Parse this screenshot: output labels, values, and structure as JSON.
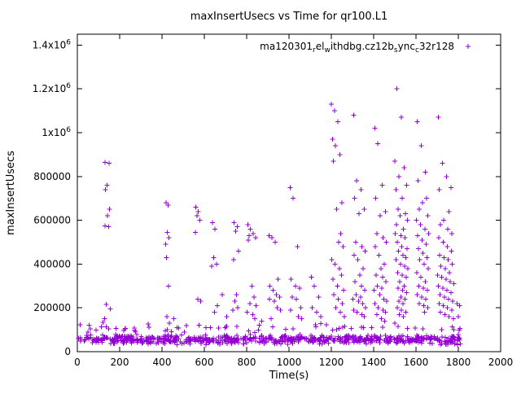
{
  "page": {
    "background": "#ffffff"
  },
  "chart_data": {
    "type": "scatter",
    "title": "maxInsertUsecs vs Time for qr100.L1",
    "xlabel": "Time(s)",
    "ylabel": "maxInsertUsecs",
    "xlim": [
      0,
      2000
    ],
    "ylim": [
      0,
      1450000
    ],
    "grid": false,
    "marker": "plus",
    "marker_color": "#9400d3",
    "xticks": [
      0,
      200,
      400,
      600,
      800,
      1000,
      1200,
      1400,
      1600,
      1800,
      2000
    ],
    "yticks": [
      {
        "v": 0,
        "label": "0"
      },
      {
        "v": 200000,
        "label": "200000"
      },
      {
        "v": 400000,
        "label": "400000"
      },
      {
        "v": 600000,
        "label": "600000"
      },
      {
        "v": 800000,
        "label": "800000"
      },
      {
        "v": 1000000,
        "label": "1x10^6"
      },
      {
        "v": 1200000,
        "label": "1.2x10^6"
      },
      {
        "v": 1400000,
        "label": "1.4x10^6"
      }
    ],
    "legend": {
      "label": "ma120301_rel_withdbg.cz12b_sync_c32r128",
      "position": "top-right-inside",
      "segments": [
        {
          "t": "ma120301",
          "sub": false
        },
        {
          "t": "r",
          "sub": true
        },
        {
          "t": "el",
          "sub": false
        },
        {
          "t": "w",
          "sub": true
        },
        {
          "t": "ithdbg.cz12b",
          "sub": false
        },
        {
          "t": "s",
          "sub": true
        },
        {
          "t": "ync",
          "sub": false
        },
        {
          "t": "c",
          "sub": true
        },
        {
          "t": "32r128",
          "sub": false
        }
      ]
    },
    "baseline_layers": [
      {
        "count": 680,
        "x": [
          2,
          1812
        ],
        "y": [
          30000,
          80000
        ],
        "seed": 42
      },
      {
        "count": 60,
        "x": [
          5,
          1810
        ],
        "y": [
          80000,
          135000
        ],
        "seed": 1234
      }
    ],
    "points": [
      [
        62,
        105000
      ],
      [
        88,
        98000
      ],
      [
        128,
        150000
      ],
      [
        130,
        865000
      ],
      [
        131,
        575000
      ],
      [
        133,
        740000
      ],
      [
        137,
        215000
      ],
      [
        140,
        760000
      ],
      [
        143,
        620000
      ],
      [
        148,
        570000
      ],
      [
        150,
        860000
      ],
      [
        152,
        650000
      ],
      [
        155,
        195000
      ],
      [
        415,
        95000
      ],
      [
        418,
        490000
      ],
      [
        420,
        680000
      ],
      [
        422,
        430000
      ],
      [
        424,
        160000
      ],
      [
        425,
        545000
      ],
      [
        428,
        670000
      ],
      [
        430,
        300000
      ],
      [
        432,
        520000
      ],
      [
        435,
        130000
      ],
      [
        455,
        150000
      ],
      [
        505,
        90000
      ],
      [
        558,
        545000
      ],
      [
        560,
        660000
      ],
      [
        565,
        620000
      ],
      [
        570,
        240000
      ],
      [
        572,
        640000
      ],
      [
        575,
        120000
      ],
      [
        578,
        600000
      ],
      [
        582,
        230000
      ],
      [
        635,
        390000
      ],
      [
        638,
        590000
      ],
      [
        644,
        430000
      ],
      [
        648,
        180000
      ],
      [
        650,
        560000
      ],
      [
        658,
        400000
      ],
      [
        662,
        210000
      ],
      [
        685,
        260000
      ],
      [
        705,
        160000
      ],
      [
        735,
        190000
      ],
      [
        738,
        420000
      ],
      [
        740,
        590000
      ],
      [
        745,
        230000
      ],
      [
        748,
        550000
      ],
      [
        752,
        260000
      ],
      [
        755,
        570000
      ],
      [
        758,
        200000
      ],
      [
        762,
        460000
      ],
      [
        802,
        180000
      ],
      [
        805,
        580000
      ],
      [
        808,
        510000
      ],
      [
        812,
        530000
      ],
      [
        815,
        220000
      ],
      [
        818,
        560000
      ],
      [
        825,
        300000
      ],
      [
        828,
        170000
      ],
      [
        830,
        540000
      ],
      [
        835,
        250000
      ],
      [
        838,
        150000
      ],
      [
        842,
        520000
      ],
      [
        845,
        210000
      ],
      [
        872,
        140000
      ],
      [
        905,
        530000
      ],
      [
        908,
        240000
      ],
      [
        910,
        300000
      ],
      [
        915,
        150000
      ],
      [
        920,
        520000
      ],
      [
        925,
        280000
      ],
      [
        930,
        230000
      ],
      [
        935,
        500000
      ],
      [
        940,
        260000
      ],
      [
        945,
        200000
      ],
      [
        948,
        330000
      ],
      [
        955,
        250000
      ],
      [
        960,
        190000
      ],
      [
        1005,
        750000
      ],
      [
        1008,
        190000
      ],
      [
        1010,
        330000
      ],
      [
        1015,
        250000
      ],
      [
        1020,
        700000
      ],
      [
        1030,
        300000
      ],
      [
        1035,
        240000
      ],
      [
        1040,
        480000
      ],
      [
        1045,
        160000
      ],
      [
        1050,
        290000
      ],
      [
        1055,
        200000
      ],
      [
        1060,
        150000
      ],
      [
        1105,
        340000
      ],
      [
        1110,
        200000
      ],
      [
        1120,
        300000
      ],
      [
        1130,
        180000
      ],
      [
        1140,
        250000
      ],
      [
        1150,
        160000
      ],
      [
        1200,
        1130000
      ],
      [
        1215,
        1100000
      ],
      [
        1230,
        1050000
      ],
      [
        1205,
        970000
      ],
      [
        1220,
        940000
      ],
      [
        1240,
        900000
      ],
      [
        1210,
        870000
      ],
      [
        1250,
        680000
      ],
      [
        1225,
        650000
      ],
      [
        1245,
        540000
      ],
      [
        1235,
        500000
      ],
      [
        1255,
        480000
      ],
      [
        1202,
        420000
      ],
      [
        1218,
        400000
      ],
      [
        1238,
        380000
      ],
      [
        1248,
        350000
      ],
      [
        1208,
        330000
      ],
      [
        1228,
        300000
      ],
      [
        1258,
        280000
      ],
      [
        1212,
        260000
      ],
      [
        1232,
        240000
      ],
      [
        1252,
        220000
      ],
      [
        1222,
        200000
      ],
      [
        1242,
        180000
      ],
      [
        1262,
        160000
      ],
      [
        1305,
        1080000
      ],
      [
        1320,
        780000
      ],
      [
        1340,
        740000
      ],
      [
        1310,
        700000
      ],
      [
        1355,
        650000
      ],
      [
        1330,
        630000
      ],
      [
        1315,
        500000
      ],
      [
        1345,
        480000
      ],
      [
        1360,
        460000
      ],
      [
        1308,
        440000
      ],
      [
        1325,
        420000
      ],
      [
        1350,
        380000
      ],
      [
        1335,
        350000
      ],
      [
        1312,
        320000
      ],
      [
        1342,
        300000
      ],
      [
        1358,
        280000
      ],
      [
        1318,
        260000
      ],
      [
        1338,
        250000
      ],
      [
        1302,
        240000
      ],
      [
        1328,
        230000
      ],
      [
        1348,
        220000
      ],
      [
        1362,
        200000
      ],
      [
        1306,
        190000
      ],
      [
        1322,
        180000
      ],
      [
        1344,
        170000
      ],
      [
        1356,
        160000
      ],
      [
        1405,
        1020000
      ],
      [
        1420,
        950000
      ],
      [
        1440,
        760000
      ],
      [
        1410,
        700000
      ],
      [
        1455,
        640000
      ],
      [
        1430,
        620000
      ],
      [
        1415,
        540000
      ],
      [
        1445,
        520000
      ],
      [
        1460,
        500000
      ],
      [
        1408,
        480000
      ],
      [
        1425,
        440000
      ],
      [
        1450,
        400000
      ],
      [
        1435,
        380000
      ],
      [
        1412,
        350000
      ],
      [
        1442,
        340000
      ],
      [
        1458,
        320000
      ],
      [
        1418,
        300000
      ],
      [
        1438,
        290000
      ],
      [
        1402,
        280000
      ],
      [
        1428,
        260000
      ],
      [
        1448,
        240000
      ],
      [
        1462,
        230000
      ],
      [
        1406,
        220000
      ],
      [
        1422,
        200000
      ],
      [
        1444,
        190000
      ],
      [
        1456,
        180000
      ],
      [
        1416,
        170000
      ],
      [
        1436,
        150000
      ],
      [
        1452,
        140000
      ],
      [
        1510,
        1200000
      ],
      [
        1530,
        1070000
      ],
      [
        1500,
        870000
      ],
      [
        1545,
        840000
      ],
      [
        1520,
        800000
      ],
      [
        1555,
        760000
      ],
      [
        1505,
        740000
      ],
      [
        1535,
        700000
      ],
      [
        1515,
        650000
      ],
      [
        1550,
        630000
      ],
      [
        1525,
        620000
      ],
      [
        1560,
        600000
      ],
      [
        1508,
        580000
      ],
      [
        1540,
        560000
      ],
      [
        1502,
        540000
      ],
      [
        1528,
        530000
      ],
      [
        1548,
        520000
      ],
      [
        1512,
        500000
      ],
      [
        1532,
        480000
      ],
      [
        1558,
        470000
      ],
      [
        1518,
        460000
      ],
      [
        1538,
        440000
      ],
      [
        1552,
        430000
      ],
      [
        1506,
        420000
      ],
      [
        1526,
        400000
      ],
      [
        1546,
        390000
      ],
      [
        1562,
        380000
      ],
      [
        1514,
        360000
      ],
      [
        1534,
        350000
      ],
      [
        1554,
        340000
      ],
      [
        1524,
        320000
      ],
      [
        1544,
        300000
      ],
      [
        1516,
        290000
      ],
      [
        1536,
        280000
      ],
      [
        1556,
        270000
      ],
      [
        1529,
        250000
      ],
      [
        1549,
        240000
      ],
      [
        1519,
        230000
      ],
      [
        1539,
        220000
      ],
      [
        1511,
        200000
      ],
      [
        1531,
        190000
      ],
      [
        1551,
        180000
      ],
      [
        1521,
        170000
      ],
      [
        1541,
        160000
      ],
      [
        1605,
        1050000
      ],
      [
        1625,
        940000
      ],
      [
        1645,
        820000
      ],
      [
        1610,
        780000
      ],
      [
        1650,
        700000
      ],
      [
        1630,
        680000
      ],
      [
        1615,
        650000
      ],
      [
        1655,
        620000
      ],
      [
        1602,
        600000
      ],
      [
        1622,
        580000
      ],
      [
        1642,
        560000
      ],
      [
        1660,
        540000
      ],
      [
        1608,
        530000
      ],
      [
        1628,
        510000
      ],
      [
        1648,
        490000
      ],
      [
        1612,
        470000
      ],
      [
        1632,
        450000
      ],
      [
        1652,
        430000
      ],
      [
        1618,
        420000
      ],
      [
        1638,
        400000
      ],
      [
        1658,
        380000
      ],
      [
        1604,
        360000
      ],
      [
        1624,
        340000
      ],
      [
        1644,
        320000
      ],
      [
        1614,
        300000
      ],
      [
        1634,
        290000
      ],
      [
        1654,
        280000
      ],
      [
        1606,
        260000
      ],
      [
        1626,
        250000
      ],
      [
        1646,
        240000
      ],
      [
        1616,
        220000
      ],
      [
        1636,
        210000
      ],
      [
        1656,
        200000
      ],
      [
        1640,
        180000
      ],
      [
        1705,
        1070000
      ],
      [
        1725,
        860000
      ],
      [
        1745,
        800000
      ],
      [
        1765,
        750000
      ],
      [
        1710,
        740000
      ],
      [
        1755,
        640000
      ],
      [
        1730,
        600000
      ],
      [
        1715,
        580000
      ],
      [
        1750,
        560000
      ],
      [
        1770,
        540000
      ],
      [
        1708,
        520000
      ],
      [
        1728,
        500000
      ],
      [
        1748,
        480000
      ],
      [
        1768,
        460000
      ],
      [
        1712,
        440000
      ],
      [
        1732,
        430000
      ],
      [
        1752,
        420000
      ],
      [
        1772,
        400000
      ],
      [
        1718,
        390000
      ],
      [
        1738,
        380000
      ],
      [
        1758,
        360000
      ],
      [
        1702,
        350000
      ],
      [
        1722,
        340000
      ],
      [
        1742,
        330000
      ],
      [
        1762,
        320000
      ],
      [
        1778,
        310000
      ],
      [
        1706,
        300000
      ],
      [
        1726,
        290000
      ],
      [
        1746,
        280000
      ],
      [
        1766,
        270000
      ],
      [
        1714,
        260000
      ],
      [
        1734,
        250000
      ],
      [
        1754,
        240000
      ],
      [
        1774,
        230000
      ],
      [
        1709,
        220000
      ],
      [
        1729,
        210000
      ],
      [
        1749,
        200000
      ],
      [
        1769,
        190000
      ],
      [
        1716,
        180000
      ],
      [
        1736,
        170000
      ],
      [
        1756,
        160000
      ],
      [
        1776,
        150000
      ],
      [
        1795,
        220000
      ],
      [
        1805,
        210000
      ],
      [
        1800,
        160000
      ]
    ]
  }
}
